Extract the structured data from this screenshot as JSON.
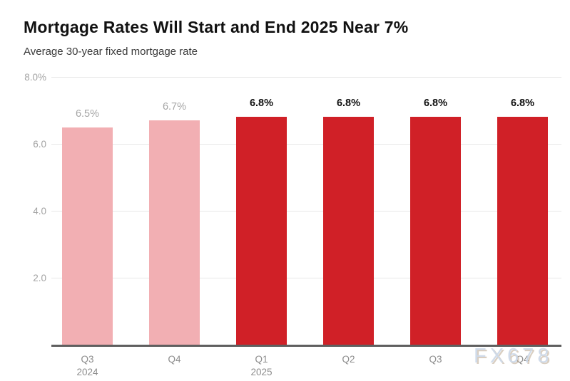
{
  "header": {
    "title": "Mortgage Rates Will Start and End 2025 Near 7%",
    "subtitle": "Average 30-year fixed mortgage rate"
  },
  "watermark": "FX678",
  "colors": {
    "actual_bar": "#F2AFB3",
    "forecast_bar": "#D02027",
    "muted_label": "#A5A5A5",
    "emphasis_label": "#111111",
    "gridline": "#E8E8E8",
    "axis_line": "#5F5F5F"
  },
  "chart_data": {
    "type": "bar",
    "title": "Mortgage Rates Will Start and End 2025 Near 7%",
    "subtitle": "Average 30-year fixed mortgage rate",
    "xlabel": "",
    "ylabel": "",
    "ylim": [
      0,
      8
    ],
    "grid": true,
    "legend": false,
    "categories": [
      "Q3",
      "Q4",
      "Q1",
      "Q2",
      "Q3",
      "Q4"
    ],
    "category_years": [
      "2024",
      "",
      "2025",
      "",
      "",
      ""
    ],
    "values": [
      6.5,
      6.7,
      6.8,
      6.8,
      6.8,
      6.8
    ],
    "bar_labels": [
      "6.5%",
      "6.7%",
      "6.8%",
      "6.8%",
      "6.8%",
      "6.8%"
    ],
    "bar_colors": [
      "#F2AFB3",
      "#F2AFB3",
      "#D02027",
      "#D02027",
      "#D02027",
      "#D02027"
    ],
    "label_styles": [
      "muted",
      "muted",
      "emphasis",
      "emphasis",
      "emphasis",
      "emphasis"
    ],
    "y_ticks": [
      {
        "value": 8,
        "label": "8.0%"
      },
      {
        "value": 6,
        "label": "6.0"
      },
      {
        "value": 4,
        "label": "4.0"
      },
      {
        "value": 2,
        "label": "2.0"
      }
    ]
  }
}
